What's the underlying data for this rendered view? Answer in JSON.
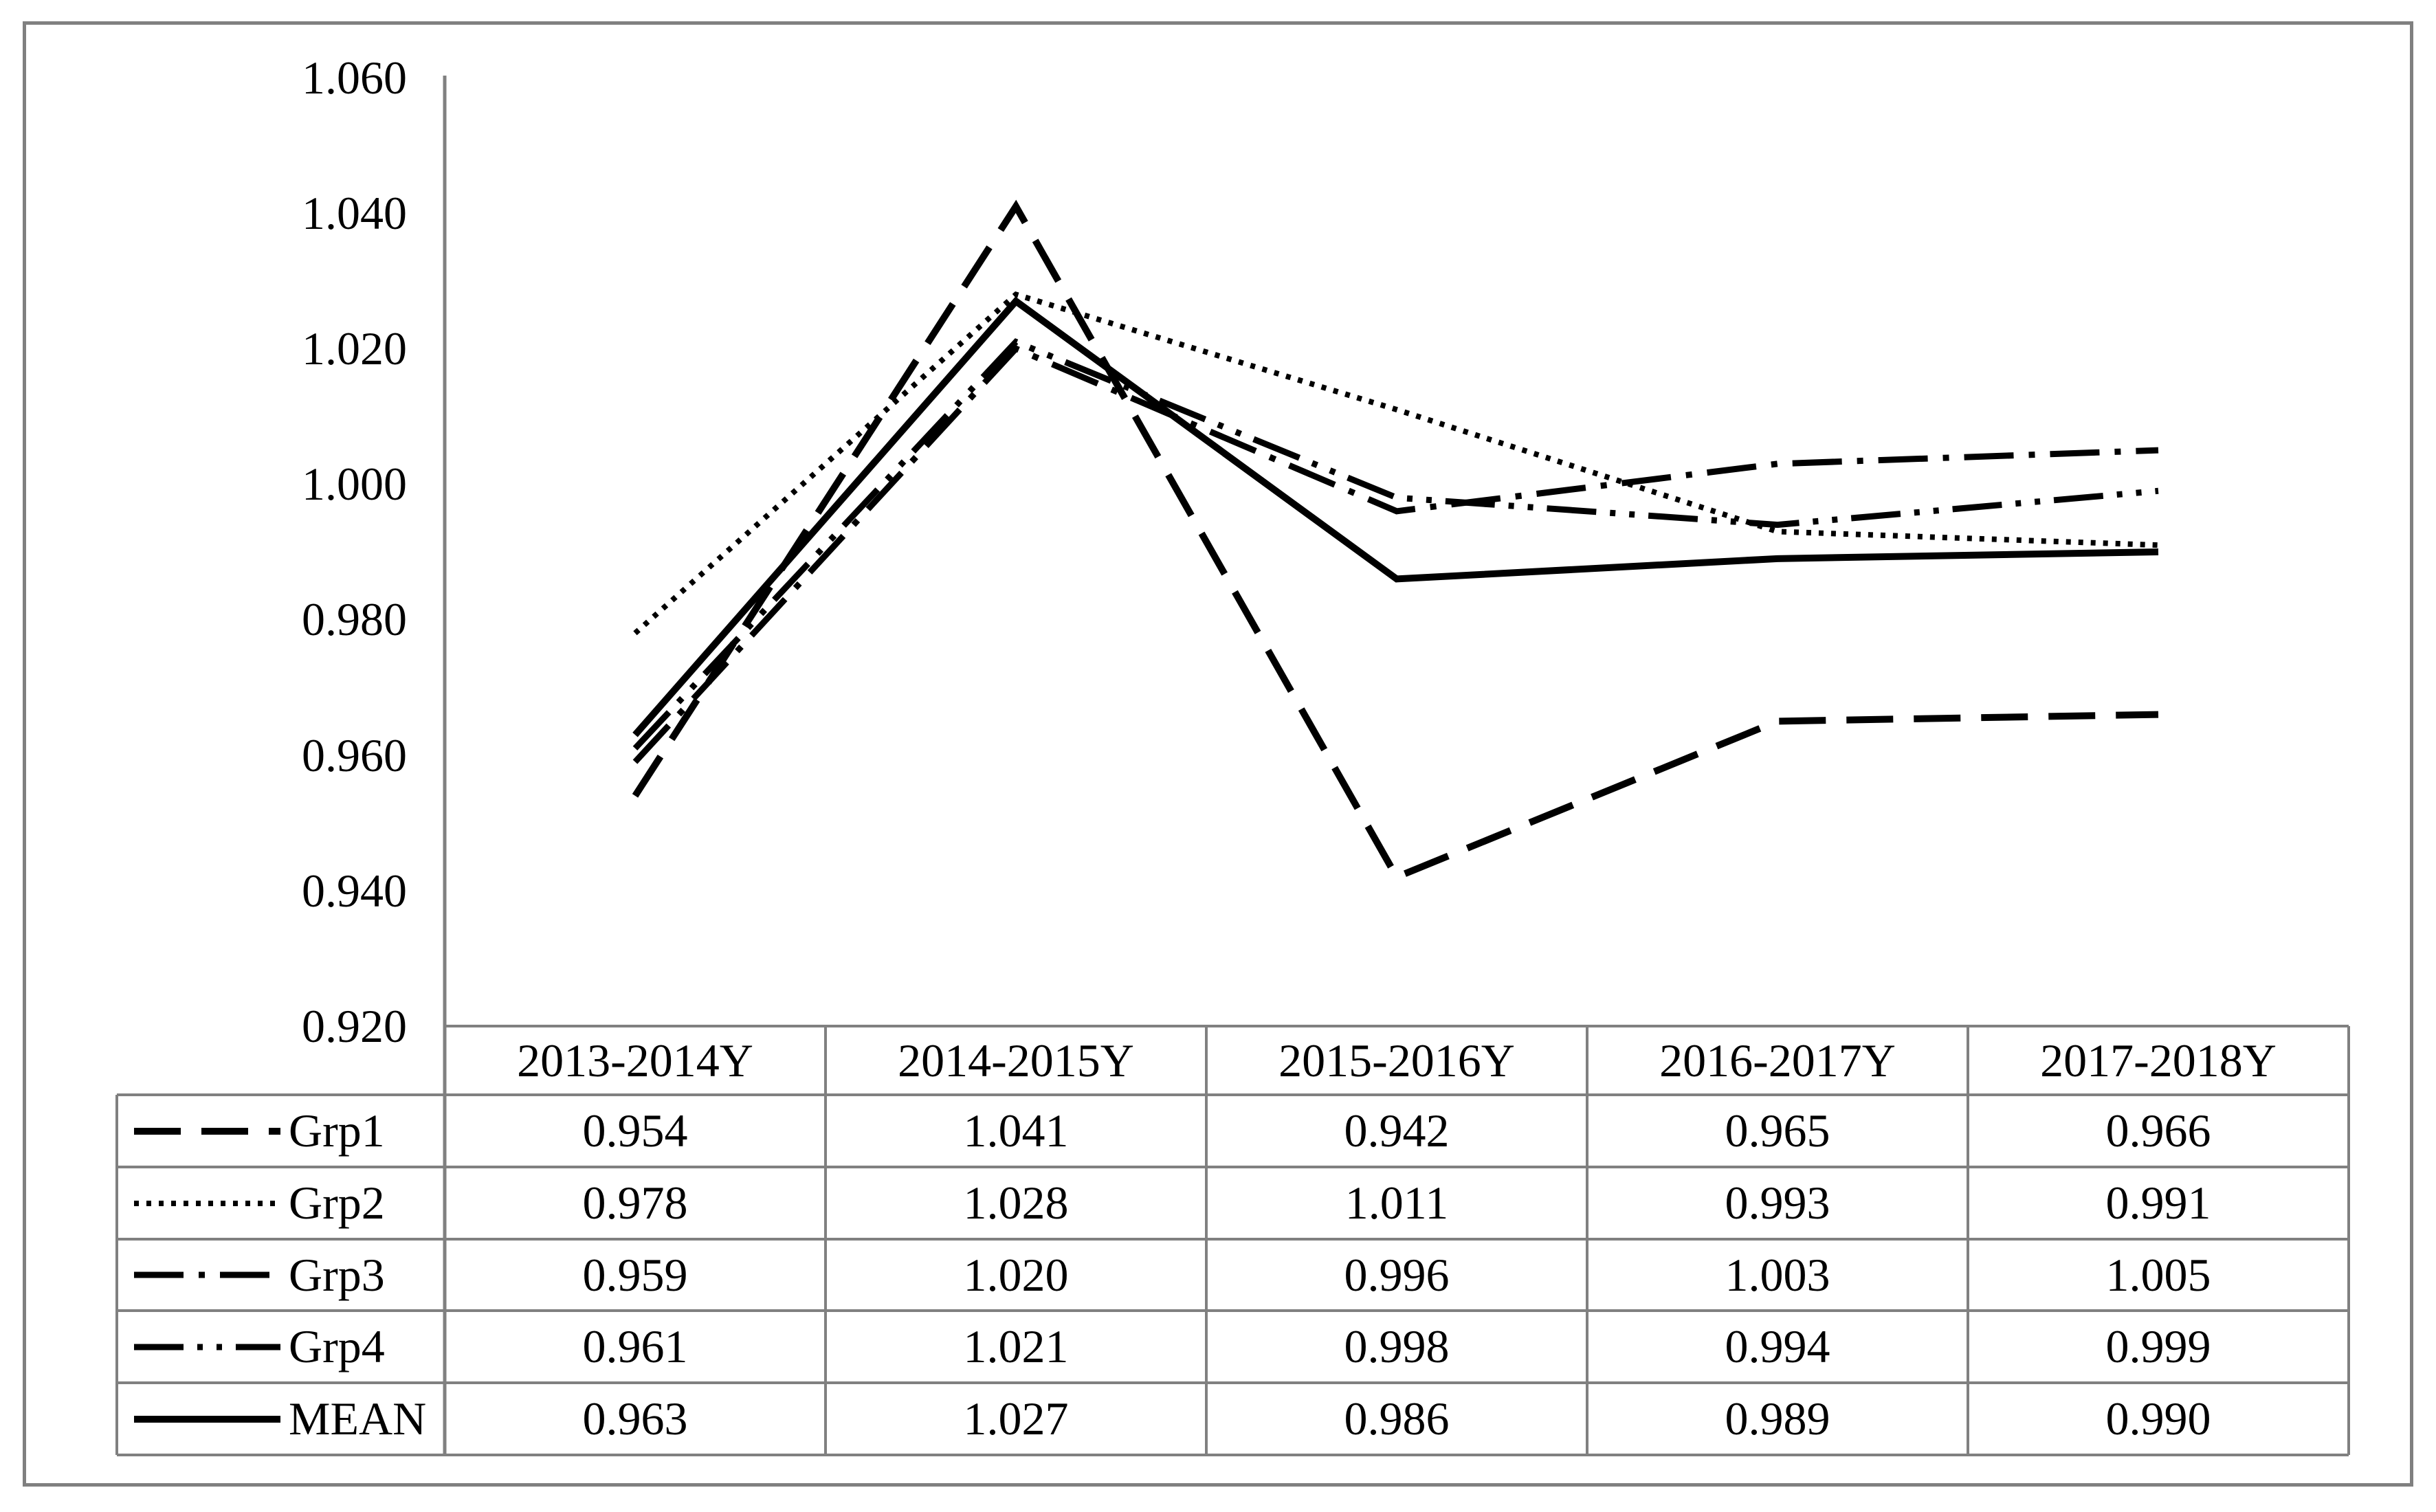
{
  "figure": {
    "background": "#ffffff",
    "border_color": "#808080",
    "line_color": "#000000",
    "grid_color": "#808080"
  },
  "chart_data": {
    "type": "line",
    "categories": [
      "2013-2014Y",
      "2014-2015Y",
      "2015-2016Y",
      "2016-2017Y",
      "2017-2018Y"
    ],
    "series": [
      {
        "name": "Grp1",
        "line_style": "long-dash",
        "values": [
          0.954,
          1.041,
          0.942,
          0.965,
          0.966
        ]
      },
      {
        "name": "Grp2",
        "line_style": "dotted",
        "values": [
          0.978,
          1.028,
          1.011,
          0.993,
          0.991
        ]
      },
      {
        "name": "Grp3",
        "line_style": "dash-dot",
        "values": [
          0.959,
          1.02,
          0.996,
          1.003,
          1.005
        ]
      },
      {
        "name": "Grp4",
        "line_style": "dash-dot-dot",
        "values": [
          0.961,
          1.021,
          0.998,
          0.994,
          0.999
        ]
      },
      {
        "name": "MEAN",
        "line_style": "solid",
        "values": [
          0.963,
          1.027,
          0.986,
          0.989,
          0.99
        ]
      }
    ],
    "title": "",
    "xlabel": "",
    "ylabel": "",
    "ylim": [
      0.92,
      1.06
    ],
    "y_tick_step": 0.02,
    "y_ticks": [
      "1.060",
      "1.040",
      "1.020",
      "1.000",
      "0.980",
      "0.960",
      "0.940",
      "0.920"
    ],
    "grid": false,
    "legend_position": "data-table-left-column"
  },
  "table": {
    "columns": [
      "2013-2014Y",
      "2014-2015Y",
      "2015-2016Y",
      "2016-2017Y",
      "2017-2018Y"
    ],
    "rows": [
      {
        "label": "Grp1",
        "values": [
          "0.954",
          "1.041",
          "0.942",
          "0.965",
          "0.966"
        ]
      },
      {
        "label": "Grp2",
        "values": [
          "0.978",
          "1.028",
          "1.011",
          "0.993",
          "0.991"
        ]
      },
      {
        "label": "Grp3",
        "values": [
          "0.959",
          "1.020",
          "0.996",
          "1.003",
          "1.005"
        ]
      },
      {
        "label": "Grp4",
        "values": [
          "0.961",
          "1.021",
          "0.998",
          "0.994",
          "0.999"
        ]
      },
      {
        "label": "MEAN",
        "values": [
          "0.963",
          "1.027",
          "0.986",
          "0.989",
          "0.990"
        ]
      }
    ]
  }
}
